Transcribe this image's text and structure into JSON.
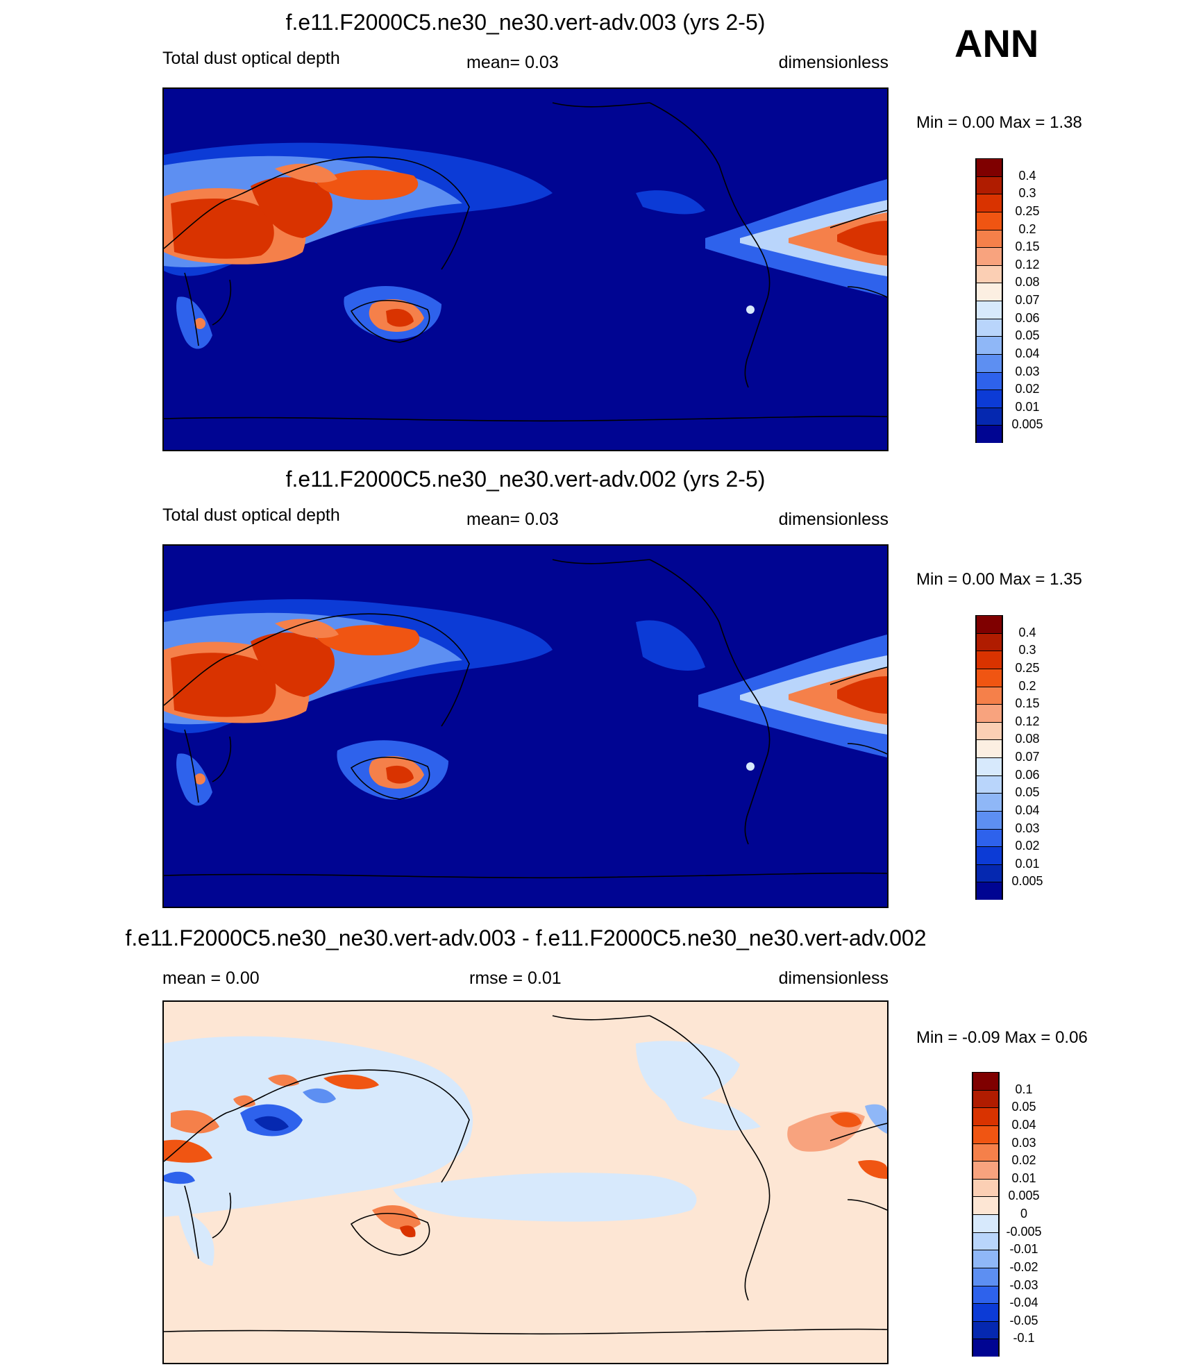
{
  "season": "ANN",
  "panels": [
    {
      "title": "f.e11.F2000C5.ne30_ne30.vert-adv.003 (yrs 2-5)",
      "left_text": "Total dust optical depth",
      "center_text": "mean=   0.03",
      "right_text": "dimensionless",
      "minmax_text": "Min =    0.00 Max =   1.38"
    },
    {
      "title": "f.e11.F2000C5.ne30_ne30.vert-adv.002 (yrs 2-5)",
      "left_text": "Total dust optical depth",
      "center_text": "mean=   0.03",
      "right_text": "dimensionless",
      "minmax_text": "Min =    0.00 Max =   1.35"
    },
    {
      "title": "f.e11.F2000C5.ne30_ne30.vert-adv.003 - f.e11.F2000C5.ne30_ne30.vert-adv.002",
      "left_text": "mean =    0.00",
      "center_text": "rmse =    0.01",
      "right_text": "dimensionless",
      "minmax_text": "Min =  -0.09 Max =    0.06"
    }
  ],
  "chart_data": [
    {
      "type": "heatmap",
      "title": "f.e11.F2000C5.ne30_ne30.vert-adv.003 (yrs 2-5)",
      "variable": "Total dust optical depth",
      "units": "dimensionless",
      "mean": 0.03,
      "min": 0.0,
      "max": 1.38,
      "contour_levels": [
        "0.4",
        "0.3",
        "0.25",
        "0.2",
        "0.15",
        "0.12",
        "0.08",
        "0.07",
        "0.06",
        "0.05",
        "0.04",
        "0.03",
        "0.02",
        "0.01",
        "0.005"
      ],
      "colors": [
        "#7f0000",
        "#b01c00",
        "#d93300",
        "#f05512",
        "#f5804a",
        "#f8a37e",
        "#fbcfb4",
        "#fcefe2",
        "#d7e9fc",
        "#b9d5fb",
        "#8fb7f7",
        "#5d8ff2",
        "#2e62ec",
        "#0c3bd6",
        "#0528b0",
        "#000592"
      ]
    },
    {
      "type": "heatmap",
      "title": "f.e11.F2000C5.ne30_ne30.vert-adv.002 (yrs 2-5)",
      "variable": "Total dust optical depth",
      "units": "dimensionless",
      "mean": 0.03,
      "min": 0.0,
      "max": 1.35,
      "contour_levels": [
        "0.4",
        "0.3",
        "0.25",
        "0.2",
        "0.15",
        "0.12",
        "0.08",
        "0.07",
        "0.06",
        "0.05",
        "0.04",
        "0.03",
        "0.02",
        "0.01",
        "0.005"
      ],
      "colors": [
        "#7f0000",
        "#b01c00",
        "#d93300",
        "#f05512",
        "#f5804a",
        "#f8a37e",
        "#fbcfb4",
        "#fcefe2",
        "#d7e9fc",
        "#b9d5fb",
        "#8fb7f7",
        "#5d8ff2",
        "#2e62ec",
        "#0c3bd6",
        "#0528b0",
        "#000592"
      ]
    },
    {
      "type": "heatmap",
      "title": "f.e11.F2000C5.ne30_ne30.vert-adv.003 - f.e11.F2000C5.ne30_ne30.vert-adv.002",
      "units": "dimensionless",
      "mean": 0.0,
      "rmse": 0.01,
      "min": -0.09,
      "max": 0.06,
      "contour_levels": [
        "0.1",
        "0.05",
        "0.04",
        "0.03",
        "0.02",
        "0.01",
        "0.005",
        "0",
        "-0.005",
        "-0.01",
        "-0.02",
        "-0.03",
        "-0.04",
        "-0.05",
        "-0.1"
      ],
      "colors": [
        "#7f0000",
        "#b01c00",
        "#d93300",
        "#f05512",
        "#f5804a",
        "#f8a37e",
        "#fbcfb4",
        "#fde6d4",
        "#d7e9fc",
        "#b9d5fb",
        "#8fb7f7",
        "#5d8ff2",
        "#2e62ec",
        "#0c3bd6",
        "#0528b0",
        "#000592"
      ]
    }
  ]
}
